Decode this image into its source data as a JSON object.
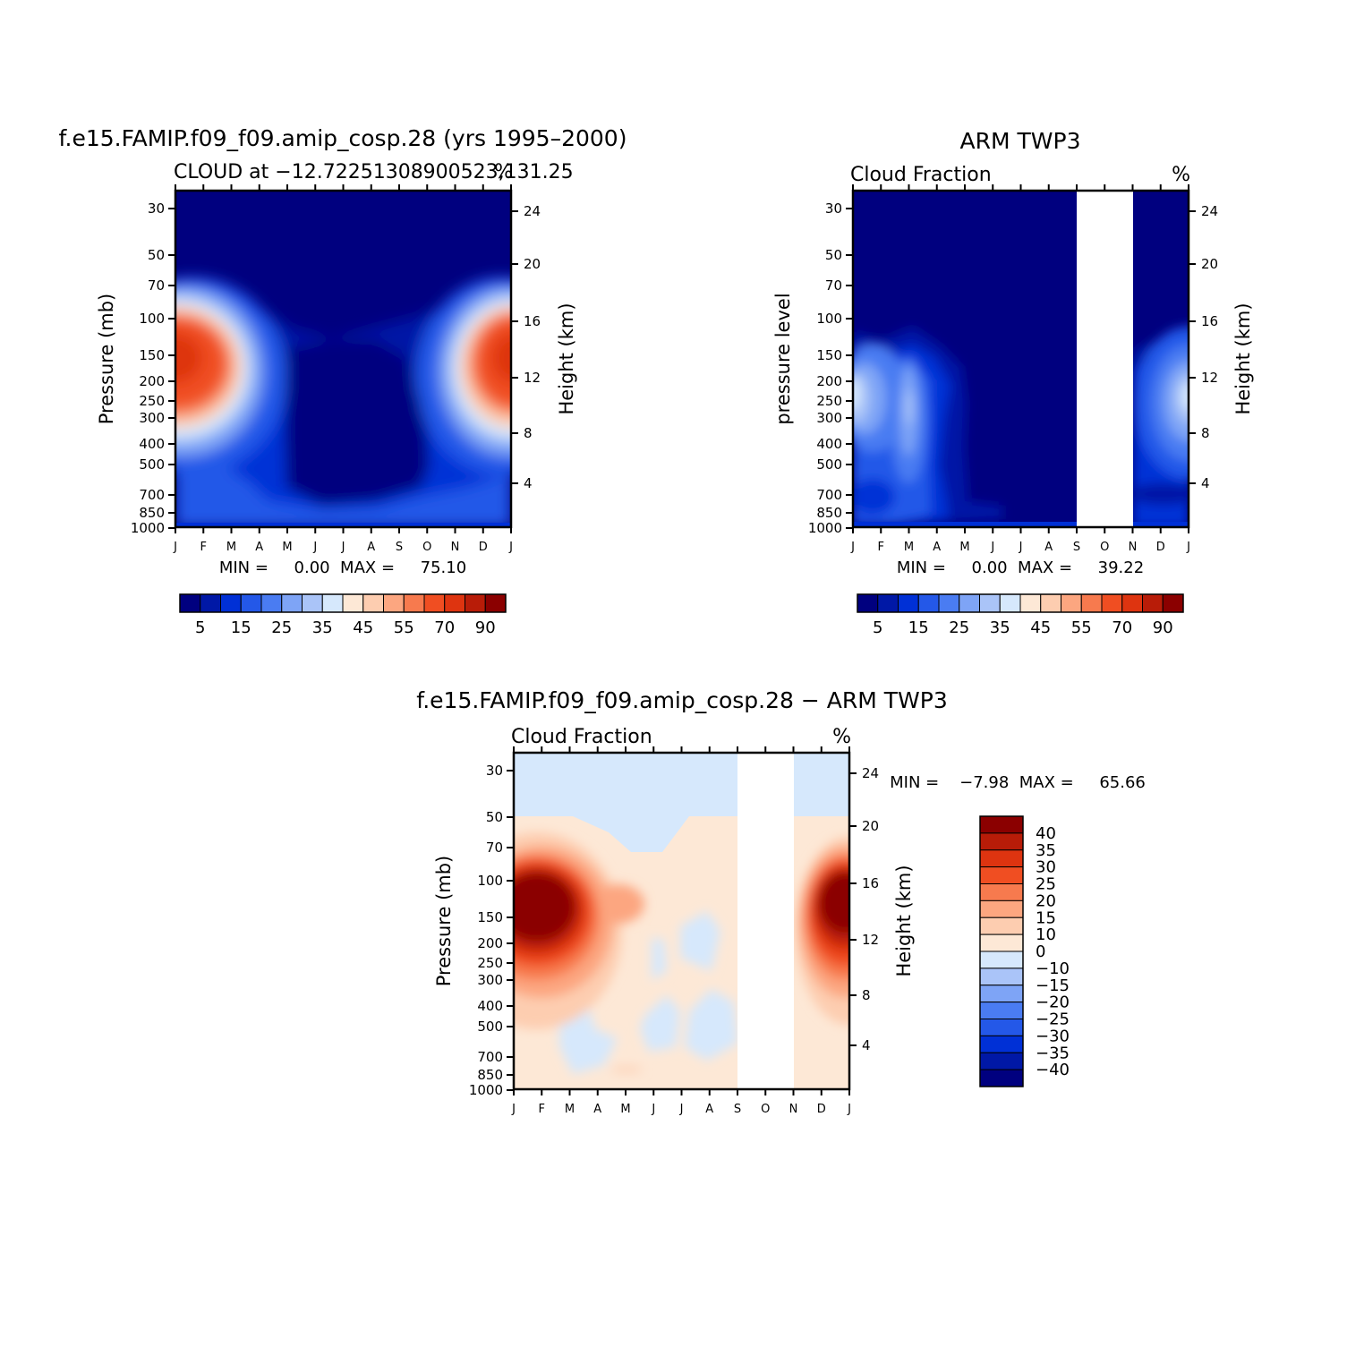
{
  "months": [
    "J",
    "F",
    "M",
    "A",
    "M",
    "J",
    "J",
    "A",
    "S",
    "O",
    "N",
    "D",
    "J"
  ],
  "pressure_ticks": [
    "30",
    "50",
    "70",
    "100",
    "150",
    "200",
    "250",
    "300",
    "400",
    "500",
    "700",
    "850",
    "1000"
  ],
  "height_ticks": [
    "24",
    "20",
    "16",
    "12",
    "8",
    "4"
  ],
  "colorbar_ticks": [
    "5",
    "15",
    "25",
    "35",
    "45",
    "55",
    "70",
    "90"
  ],
  "diff_colorbar_ticks": [
    "40",
    "35",
    "30",
    "25",
    "20",
    "15",
    "10",
    "0",
    "−10",
    "−15",
    "−20",
    "−25",
    "−30",
    "−35",
    "−40"
  ],
  "palette": {
    "levels": [
      "#00007f",
      "#0018a6",
      "#0030d6",
      "#2458e8",
      "#4a7cf2",
      "#7ea4f6",
      "#aac4f8",
      "#d6e8fc",
      "#fde8d6",
      "#fdcdb0",
      "#fca680",
      "#f77a4e",
      "#f04e22",
      "#de3410",
      "#b81c08",
      "#8b0000"
    ]
  },
  "chart_data": [
    {
      "type": "heatmap",
      "title": "f.e15.FAMIP.f09_f09.amip_cosp.28 (yrs 1995–2000)",
      "subtitle": "CLOUD at −12.7225130890052 3,131.25",
      "subtitle_left": "CLOUD at −12.72251308900523,131.25",
      "subtitle_right": "%",
      "x": [
        "J",
        "F",
        "M",
        "A",
        "M",
        "J",
        "J",
        "A",
        "S",
        "O",
        "N",
        "D",
        "J"
      ],
      "ylabel": "Pressure (mb)",
      "ylabel_right": "Height (km)",
      "y_scale": "log",
      "ylim": [
        1000,
        20
      ],
      "stat_text": "MIN =     0.00  MAX =     75.10",
      "min": 0.0,
      "max": 75.1,
      "colorbar_levels": [
        5,
        10,
        15,
        20,
        25,
        30,
        35,
        40,
        45,
        50,
        55,
        60,
        70,
        80,
        90
      ]
    },
    {
      "type": "heatmap",
      "title": "ARM TWP3",
      "subtitle_left": "Cloud Fraction",
      "subtitle_right": "%",
      "x": [
        "J",
        "F",
        "M",
        "A",
        "M",
        "J",
        "J",
        "A",
        "S",
        "O",
        "N",
        "D",
        "J"
      ],
      "ylabel": "pressure level",
      "ylabel_right": "Height (km)",
      "y_scale": "log",
      "ylim": [
        1000,
        20
      ],
      "missing_months": [
        "S",
        "O"
      ],
      "stat_text": "MIN =     0.00  MAX =     39.22",
      "min": 0.0,
      "max": 39.22,
      "colorbar_levels": [
        5,
        10,
        15,
        20,
        25,
        30,
        35,
        40,
        45,
        50,
        55,
        60,
        70,
        80,
        90
      ]
    },
    {
      "type": "heatmap",
      "title": "f.e15.FAMIP.f09_f09.amip_cosp.28 − ARM TWP3",
      "subtitle_left": "Cloud Fraction",
      "subtitle_right": "%",
      "x": [
        "J",
        "F",
        "M",
        "A",
        "M",
        "J",
        "J",
        "A",
        "S",
        "O",
        "N",
        "D",
        "J"
      ],
      "ylabel": "Pressure (mb)",
      "ylabel_right": "Height (km)",
      "y_scale": "log",
      "ylim": [
        1000,
        20
      ],
      "missing_months": [
        "S",
        "O"
      ],
      "stat_text": "MIN =    −7.98  MAX =     65.66",
      "min": -7.98,
      "max": 65.66,
      "colorbar_levels": [
        -40,
        -35,
        -30,
        -25,
        -20,
        -15,
        -10,
        0,
        10,
        15,
        20,
        25,
        30,
        35,
        40
      ]
    }
  ]
}
